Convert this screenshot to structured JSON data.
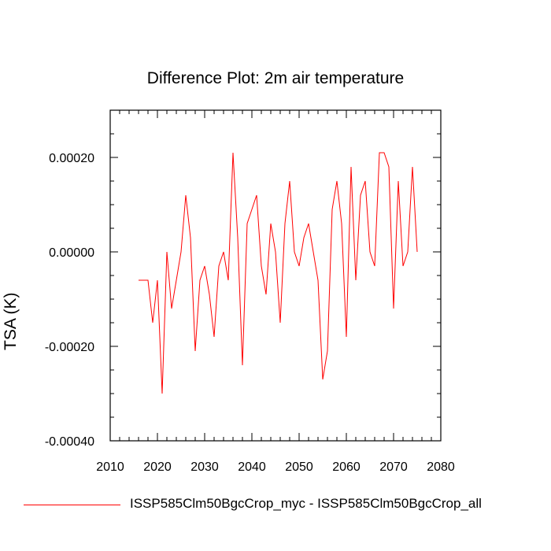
{
  "chart_data": {
    "type": "line",
    "title": "Difference Plot: 2m air temperature",
    "xlabel": "",
    "ylabel": "TSA  (K)",
    "xlim": [
      2010,
      2080
    ],
    "ylim": [
      -0.0004,
      0.0003
    ],
    "x_ticks": [
      2010,
      2020,
      2030,
      2040,
      2050,
      2060,
      2070,
      2080
    ],
    "x_tick_labels": [
      "2010",
      "2020",
      "2030",
      "2040",
      "2050",
      "2060",
      "2070",
      "2080"
    ],
    "y_ticks": [
      -0.0004,
      -0.0002,
      0.0,
      0.0002
    ],
    "y_tick_labels": [
      "-0.00040",
      "-0.00020",
      "0.00000",
      "0.00020"
    ],
    "grid": false,
    "legend_position": "bottom",
    "series": [
      {
        "name": "ISSP585Clm50BgcCrop_myc - ISSP585Clm50BgcCrop_all",
        "color": "#ff0000",
        "x": [
          2016,
          2017,
          2018,
          2019,
          2020,
          2021,
          2022,
          2023,
          2024,
          2025,
          2026,
          2027,
          2028,
          2029,
          2030,
          2031,
          2032,
          2033,
          2034,
          2035,
          2036,
          2037,
          2038,
          2039,
          2040,
          2041,
          2042,
          2043,
          2044,
          2045,
          2046,
          2047,
          2048,
          2049,
          2050,
          2051,
          2052,
          2053,
          2054,
          2055,
          2056,
          2057,
          2058,
          2059,
          2060,
          2061,
          2062,
          2063,
          2064,
          2065,
          2066,
          2067,
          2068,
          2069,
          2070,
          2071,
          2072,
          2073,
          2074,
          2075
        ],
        "values": [
          -6e-05,
          -6e-05,
          -6e-05,
          -0.00015,
          -6e-05,
          -0.0003,
          0.0,
          -0.00012,
          -6e-05,
          0.0,
          0.00012,
          3e-05,
          -0.00021,
          -6e-05,
          -3e-05,
          -9e-05,
          -0.00018,
          -3e-05,
          0.0,
          -6e-05,
          0.00021,
          3e-05,
          -0.00024,
          6e-05,
          9e-05,
          0.00012,
          -3e-05,
          -9e-05,
          6e-05,
          0.0,
          -0.00015,
          6e-05,
          0.00015,
          0.0,
          -3e-05,
          3e-05,
          6e-05,
          0.0,
          -6e-05,
          -0.00027,
          -0.00021,
          9e-05,
          0.00015,
          6e-05,
          -0.00018,
          0.00018,
          -6e-05,
          0.00012,
          0.00015,
          0.0,
          -3e-05,
          0.00021,
          0.00021,
          0.00018,
          -0.00012,
          0.00015,
          -3e-05,
          0.0,
          0.00018,
          0.0
        ]
      }
    ]
  }
}
